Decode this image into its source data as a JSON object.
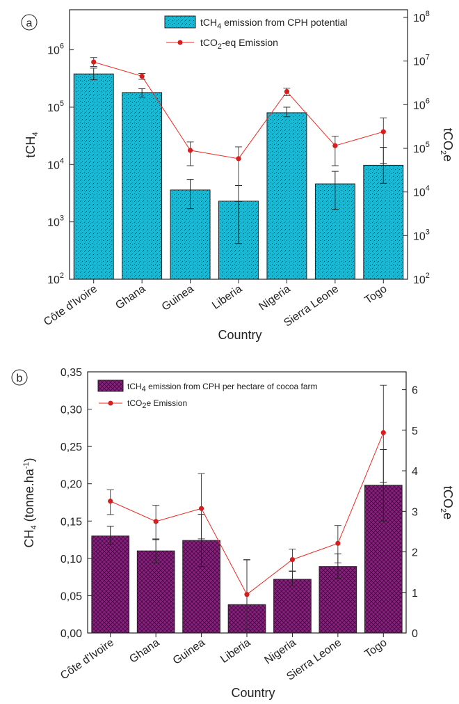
{
  "chart_data": [
    {
      "panel": "a",
      "type": "bar",
      "categories": [
        "Côte d'Ivoire",
        "Ghana",
        "Guinea",
        "Liberia",
        "Nigeria",
        "Sierra Leone",
        "Togo"
      ],
      "xlabel": "Country",
      "ylabel": "tCH4",
      "ylabel_right": "tCO2e",
      "y_scale": "log",
      "ylim": [
        100,
        5000000
      ],
      "y2lim": [
        100,
        150000000
      ],
      "y_ticks": [
        {
          "v": 100,
          "b": "10",
          "e": "2"
        },
        {
          "v": 1000,
          "b": "10",
          "e": "3"
        },
        {
          "v": 10000,
          "b": "10",
          "e": "4"
        },
        {
          "v": 100000,
          "b": "10",
          "e": "5"
        },
        {
          "v": 1000000,
          "b": "10",
          "e": "6"
        }
      ],
      "y2_ticks": [
        {
          "v": 100,
          "b": "10",
          "e": "2"
        },
        {
          "v": 1000,
          "b": "10",
          "e": "3"
        },
        {
          "v": 10000,
          "b": "10",
          "e": "4"
        },
        {
          "v": 100000,
          "b": "10",
          "e": "5"
        },
        {
          "v": 1000000,
          "b": "10",
          "e": "6"
        },
        {
          "v": 10000000,
          "b": "10",
          "e": "7"
        },
        {
          "v": 100000000,
          "b": "10",
          "e": "8"
        }
      ],
      "series": [
        {
          "name": "tCH4 emission from CPH potential",
          "kind": "bar",
          "axis": "left",
          "values": [
            380000,
            180000,
            3600,
            2300,
            80000,
            4600,
            9700
          ],
          "err_low": [
            300000,
            150000,
            1700,
            420,
            68000,
            1650,
            4700
          ],
          "err_high": [
            480000,
            210000,
            5500,
            4300,
            100000,
            7600,
            20000
          ]
        },
        {
          "name": "tCO2-eq Emission",
          "kind": "line",
          "axis": "right",
          "values": [
            9500000,
            4500000,
            90000,
            58000,
            2000000,
            115000,
            240000
          ],
          "err_low": [
            7500000,
            3800000,
            40000,
            6000,
            1600000,
            40000,
            45000
          ],
          "err_high": [
            12000000,
            5200000,
            140000,
            108000,
            2400000,
            190000,
            500000
          ]
        }
      ],
      "legend_position": "top-right"
    },
    {
      "panel": "b",
      "type": "bar",
      "categories": [
        "Côte d'Ivoire",
        "Ghana",
        "Guinea",
        "Liberia",
        "Nigeria",
        "Sierra Leone",
        "Togo"
      ],
      "xlabel": "Country",
      "ylabel": "CH4 (tonne.ha-1)",
      "ylabel_right": "tCO2e",
      "ylim": [
        0,
        0.35
      ],
      "y2lim": [
        0,
        6.44
      ],
      "y_ticks": [
        "0,00",
        "0,05",
        "0,10",
        "0,15",
        "0,20",
        "0,25",
        "0,30",
        "0,35"
      ],
      "y2_ticks": [
        "0",
        "1",
        "2",
        "3",
        "4",
        "5",
        "6"
      ],
      "series": [
        {
          "name": "tCH4 emission from CPH per hectare of cocoa farm",
          "kind": "bar",
          "axis": "left",
          "values": [
            0.13,
            0.11,
            0.124,
            0.038,
            0.072,
            0.089,
            0.198
          ],
          "err_low": [
            0.119,
            0.094,
            0.089,
            0.005,
            0.063,
            0.073,
            0.15
          ],
          "err_high": [
            0.143,
            0.126,
            0.159,
            0.098,
            0.083,
            0.106,
            0.246
          ]
        },
        {
          "name": "tCO2e Emission",
          "kind": "line",
          "axis": "right",
          "values": [
            3.25,
            2.75,
            3.07,
            0.95,
            1.81,
            2.21,
            4.94
          ],
          "err_low": [
            2.92,
            2.3,
            2.32,
            0.09,
            1.52,
            1.73,
            3.72
          ],
          "err_high": [
            3.53,
            3.15,
            3.93,
            1.81,
            2.07,
            2.65,
            6.11
          ]
        }
      ],
      "legend_position": "top-left"
    }
  ],
  "figure": {
    "panel_a_letter": "a",
    "panel_b_letter": "b",
    "colors": {
      "bar_a": "#1bb8d4",
      "bar_a_dots": "#0e4d5a",
      "bar_b": "#8a1f80",
      "bar_b_hatch": "#3f0c3b",
      "line": "#ee2a24",
      "marker": "#d61e1e",
      "axis": "#222222"
    }
  },
  "legend": {
    "a_bar": {
      "pre": "tCH",
      "sub": "4",
      "post": " emission from CPH potential"
    },
    "a_line": {
      "pre": "tCO",
      "sub": "2",
      "post": "-eq Emission"
    },
    "b_bar": {
      "pre": "tCH",
      "sub": "4",
      "post": " emission from CPH per hectare of cocoa farm"
    },
    "b_line": {
      "pre": "tCO",
      "sub": "2",
      "post": "e Emission"
    }
  },
  "axis_titles": {
    "a_left": {
      "pre": "tCH",
      "sub": "4"
    },
    "a_right": {
      "pre": "tCO",
      "sub": "2",
      "post": "e"
    },
    "b_left": {
      "pre": "CH",
      "sub": "4",
      "mid": " (tonne.ha",
      "sup": "-1",
      "post": ")"
    },
    "b_right": {
      "pre": "tCO",
      "sub": "2",
      "post": "e"
    },
    "a_x": "Country",
    "b_x": "Country"
  }
}
